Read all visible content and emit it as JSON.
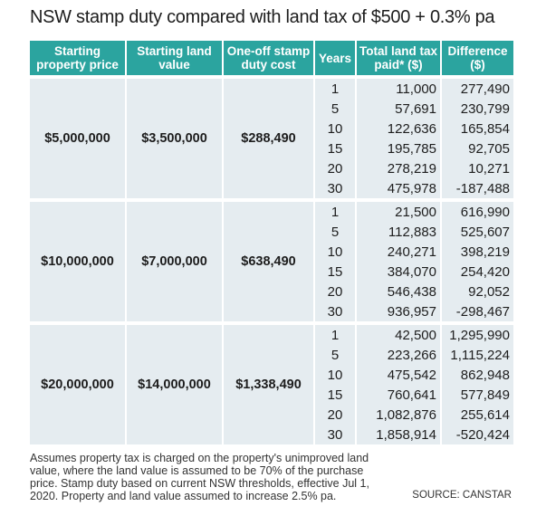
{
  "title": "NSW stamp duty compared with land tax of $500 + 0.3% pa",
  "table": {
    "header": [
      "Starting property price",
      "Starting land value",
      "One-off stamp duty cost",
      "Years",
      "Total land tax paid* ($)",
      "Difference ($)"
    ],
    "groups": [
      {
        "price": "$5,000,000",
        "land_value": "$3,500,000",
        "stamp_duty": "$288,490",
        "rows": [
          [
            "1",
            "11,000",
            "277,490"
          ],
          [
            "5",
            "57,691",
            "230,799"
          ],
          [
            "10",
            "122,636",
            "165,854"
          ],
          [
            "15",
            "195,785",
            "92,705"
          ],
          [
            "20",
            "278,219",
            "10,271"
          ],
          [
            "30",
            "475,978",
            "-187,488"
          ]
        ]
      },
      {
        "price": "$10,000,000",
        "land_value": "$7,000,000",
        "stamp_duty": "$638,490",
        "rows": [
          [
            "1",
            "21,500",
            "616,990"
          ],
          [
            "5",
            "112,883",
            "525,607"
          ],
          [
            "10",
            "240,271",
            "398,219"
          ],
          [
            "15",
            "384,070",
            "254,420"
          ],
          [
            "20",
            "546,438",
            "92,052"
          ],
          [
            "30",
            "936,957",
            "-298,467"
          ]
        ]
      },
      {
        "price": "$20,000,000",
        "land_value": "$14,000,000",
        "stamp_duty": "$1,338,490",
        "rows": [
          [
            "1",
            "42,500",
            "1,295,990"
          ],
          [
            "5",
            "223,266",
            "1,115,224"
          ],
          [
            "10",
            "475,542",
            "862,948"
          ],
          [
            "15",
            "760,641",
            "577,849"
          ],
          [
            "20",
            "1,082,876",
            "255,614"
          ],
          [
            "30",
            "1,858,914",
            "-520,424"
          ]
        ]
      }
    ]
  },
  "footnote": "Assumes property tax is charged on the property's unimproved land value, where the land value is assumed to be 70% of the purchase price. Stamp duty based on current NSW thresholds, effective Jul 1, 2020. Property and land value assumed to increase 2.5% pa.",
  "source": "SOURCE: CANSTAR"
}
